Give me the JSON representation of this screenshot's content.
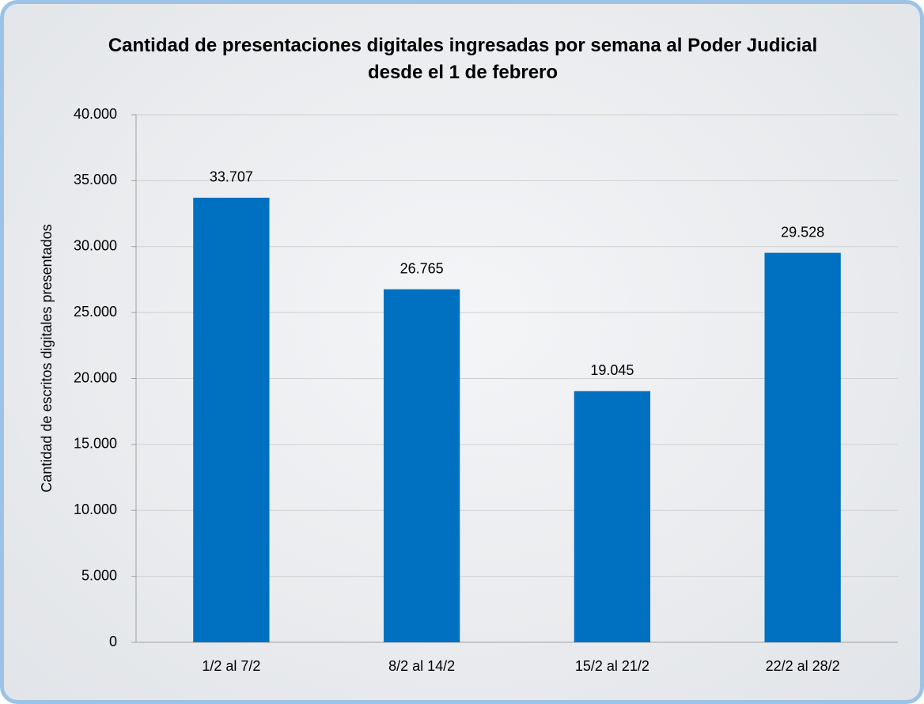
{
  "chart_data": {
    "type": "bar",
    "title": "Cantidad de presentaciones digitales ingresadas por semana al Poder Judicial desde el 1 de febrero",
    "y_label": "Cantidad de escritos digitales presentados",
    "categories": [
      "1/2 al 7/2",
      "8/2 al 14/2",
      "15/2 al 21/2",
      "22/2 al 28/2"
    ],
    "values": [
      33707,
      26765,
      19045,
      29528
    ],
    "value_labels": [
      "33.707",
      "26.765",
      "19.045",
      "29.528"
    ],
    "color": "#0070c0",
    "ylim": [
      0,
      40000
    ],
    "yticks": [
      0,
      {
        "value": 5000,
        "label": "5.000"
      },
      {
        "value": 10000,
        "label": "10.000"
      },
      {
        "value": 15000,
        "label": "15.000"
      },
      {
        "value": 20000,
        "label": "20.000"
      },
      {
        "value": 25000,
        "label": "25.000"
      },
      {
        "value": 30000,
        "label": "30.000"
      },
      {
        "value": 35000,
        "label": "35.000"
      },
      {
        "value": 40000,
        "label": "40.000"
      }
    ],
    "grid": true
  }
}
